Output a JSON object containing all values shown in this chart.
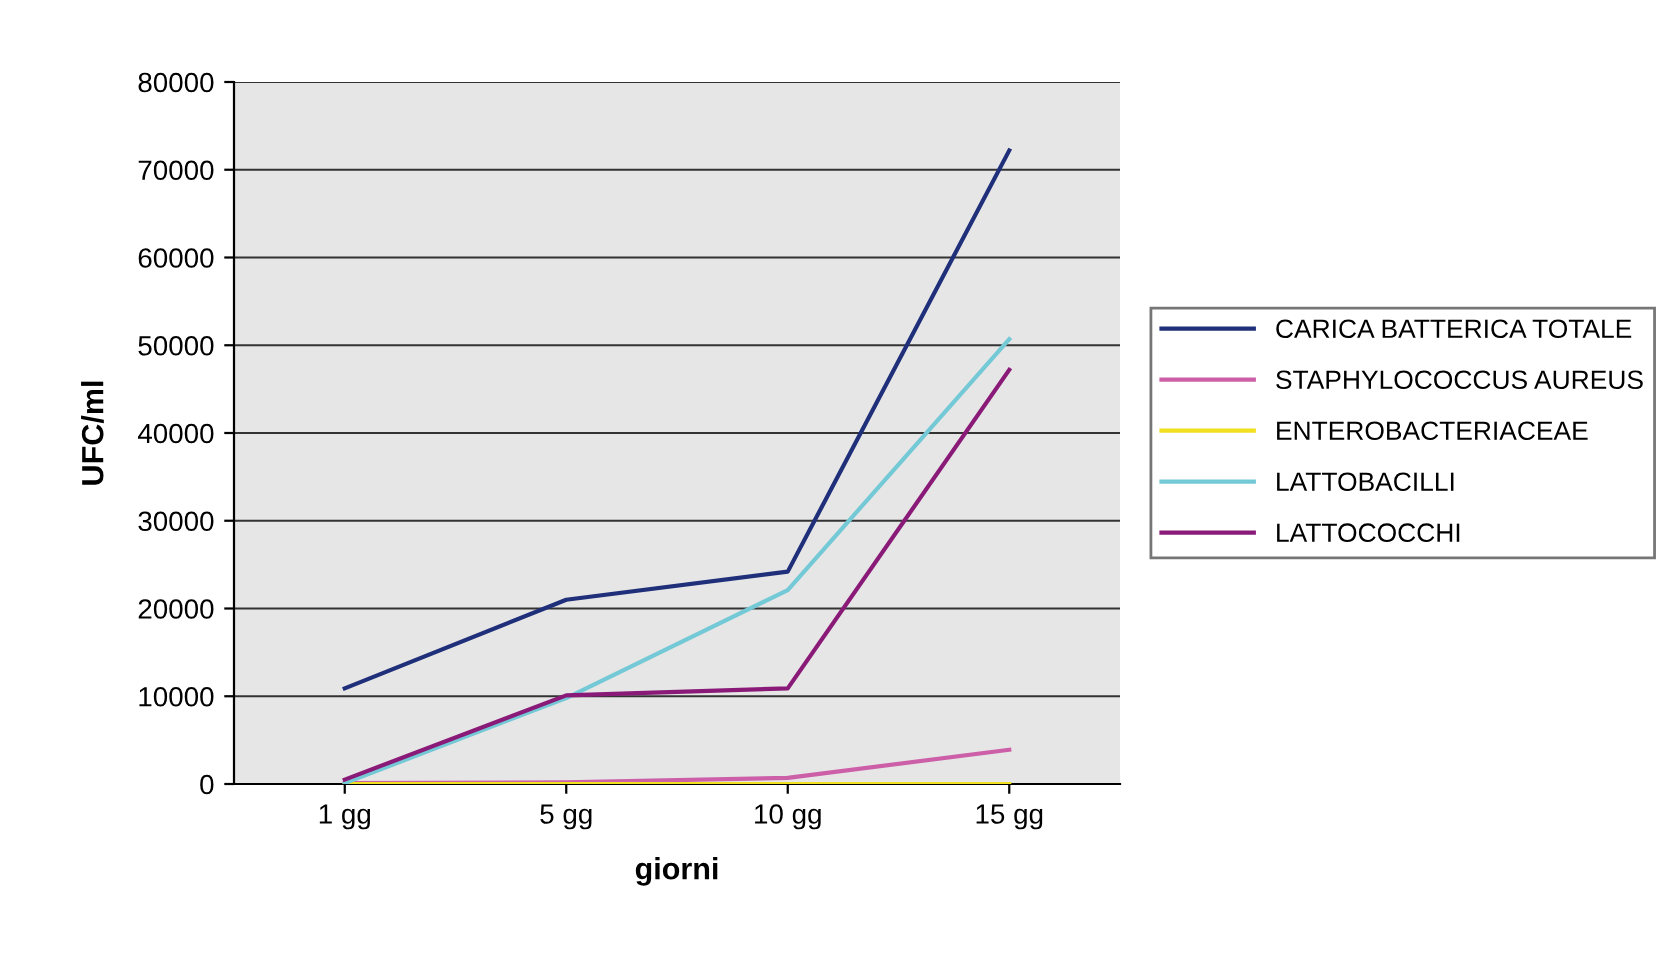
{
  "chart_data": {
    "type": "line",
    "xlabel": "giorni",
    "ylabel": "UFC/ml",
    "categories": [
      "1 gg",
      "5 gg",
      "10 gg",
      "15 gg"
    ],
    "series": [
      {
        "name": "CARICA BATTERICA TOTALE",
        "color": "#1f2f7a",
        "values": [
          10900,
          21000,
          24200,
          72200
        ]
      },
      {
        "name": "STAPHYLOCOCCUS AUREUS",
        "color": "#cc5fa8",
        "values": [
          100,
          200,
          700,
          3900
        ]
      },
      {
        "name": "ENTEROBACTERIACEAE",
        "color": "#f0e020",
        "values": [
          0,
          0,
          0,
          0
        ]
      },
      {
        "name": "LATTOBACILLI",
        "color": "#74c9d6",
        "values": [
          100,
          9800,
          22100,
          50700
        ]
      },
      {
        "name": "LATTOCOCCHI",
        "color": "#8a1a78",
        "values": [
          500,
          10100,
          10900,
          47200
        ]
      }
    ],
    "ylim": [
      0,
      80000
    ],
    "yticks": [
      0,
      10000,
      20000,
      30000,
      40000,
      50000,
      60000,
      70000,
      80000
    ],
    "grid": "y",
    "legend": "right",
    "marker": "none",
    "line_style": "solid"
  }
}
